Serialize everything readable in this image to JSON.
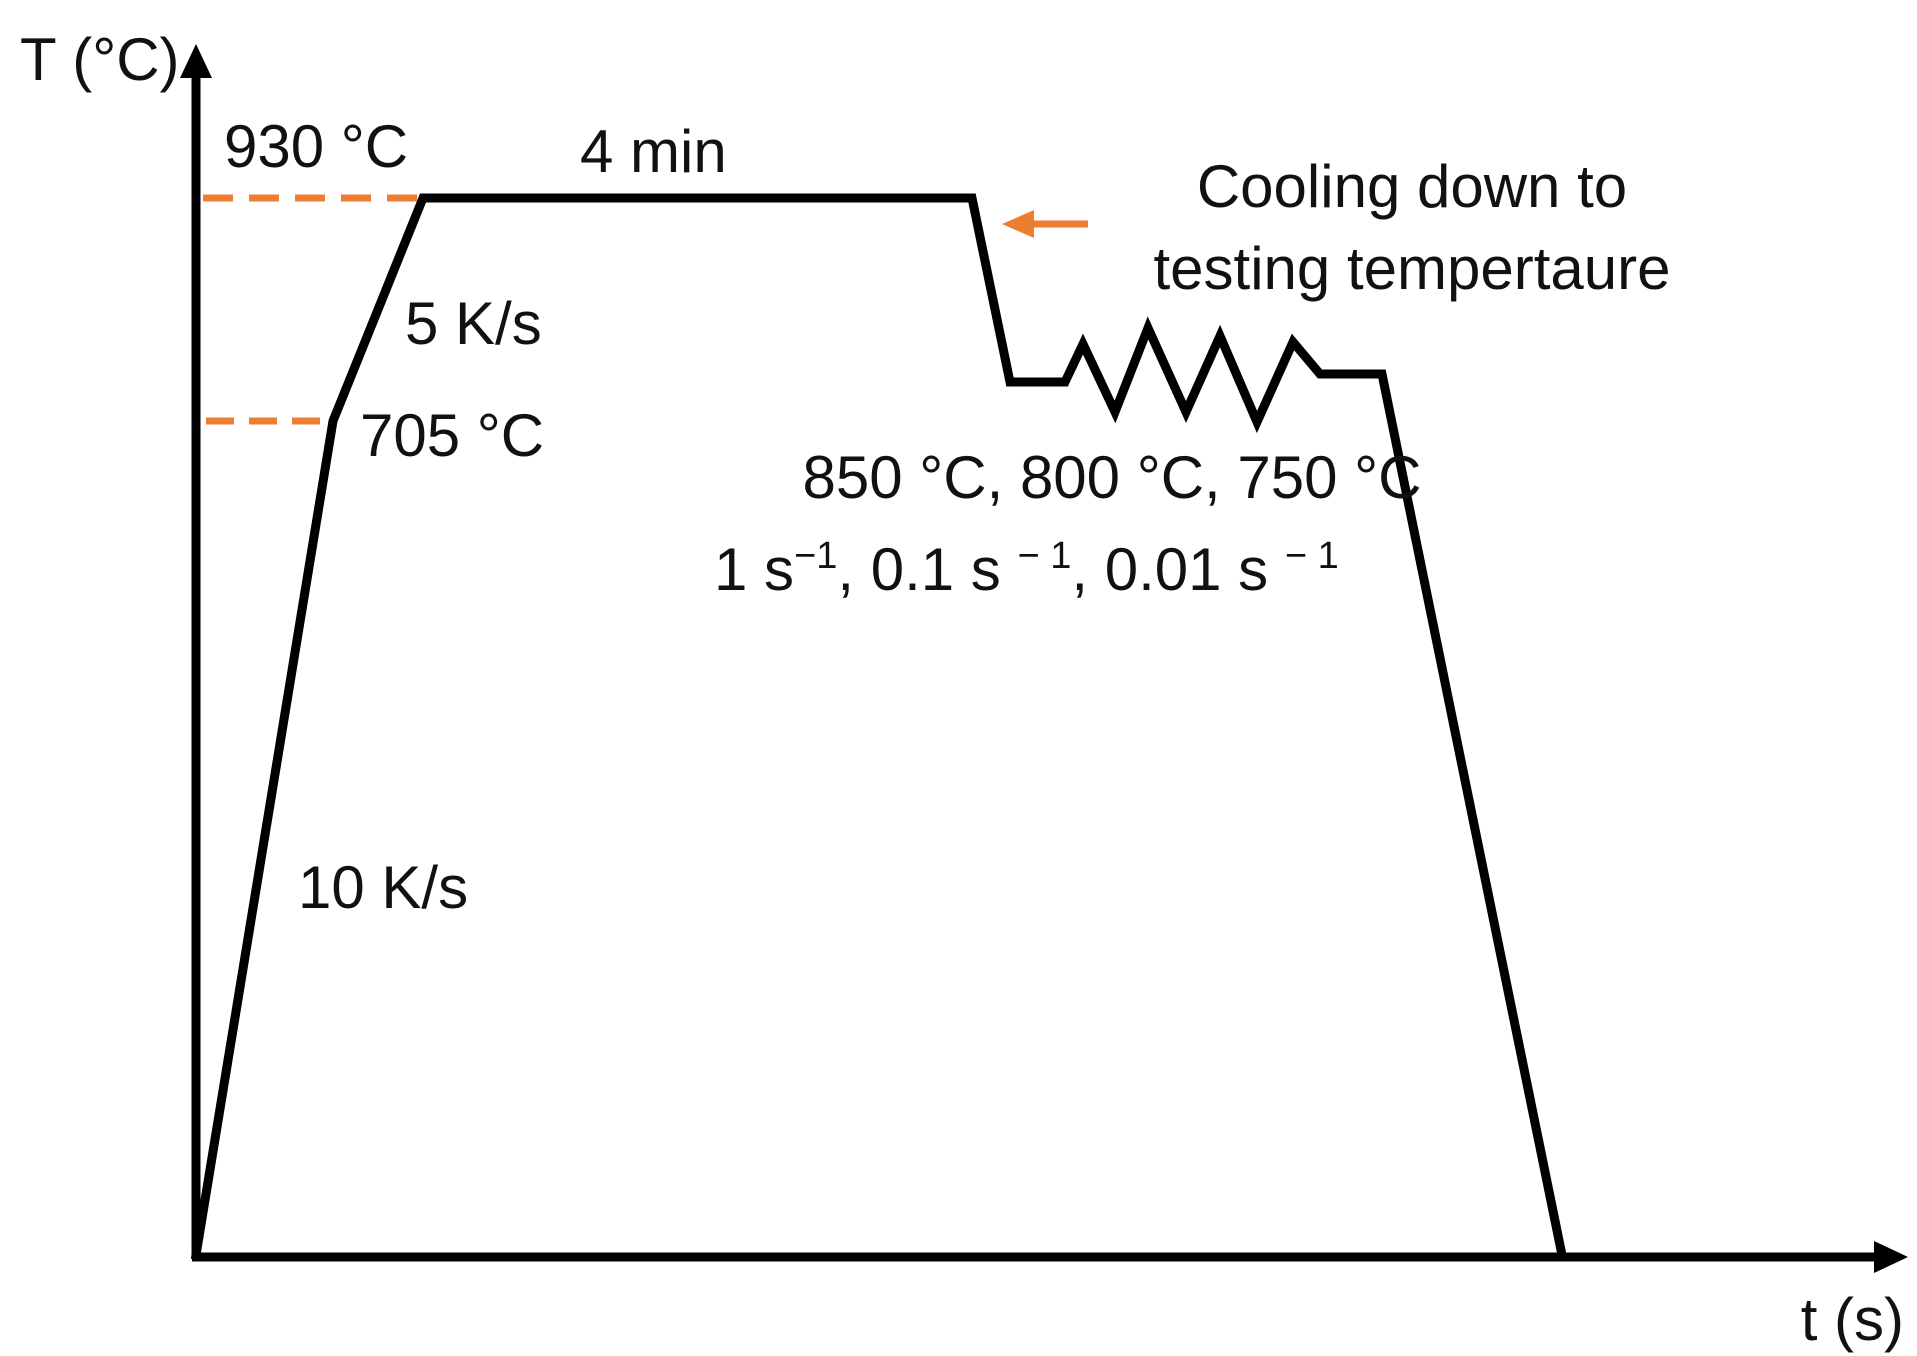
{
  "axes": {
    "y_label": "T (°C)",
    "x_label": "t (s)"
  },
  "annotations": {
    "peak_temperature": "930 °C",
    "holding_time": "4 min",
    "intermediate_temperature": "705 °C",
    "heating_rate_slow": "5 K/s",
    "heating_rate_fast": "10 K/s",
    "cooling_note_line1": "Cooling down to",
    "cooling_note_line2": "testing tempertaure",
    "test_temperatures": "850 °C, 800 °C, 750 °C",
    "strain_rates": {
      "prefix": "1 s",
      "sup1": "−1",
      "middle1": ", 0.1 s ",
      "sup2": "− 1",
      "middle2": ", 0.01 s ",
      "sup3": "− 1"
    }
  },
  "colors": {
    "profile_line": "#000000",
    "guide_dashes": "#ED7D31",
    "arrow": "#ED7D31",
    "text": "#111111"
  }
}
